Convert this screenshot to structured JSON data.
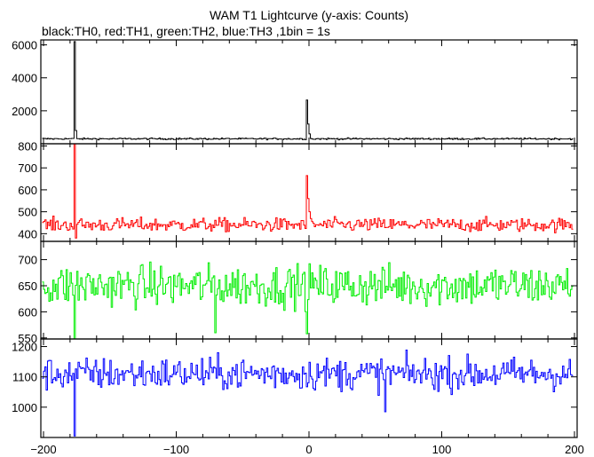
{
  "chart_data": {
    "type": "line",
    "title": "WAM T1 Lightcurve (y-axis: Counts)",
    "subtitle": "black:TH0, red:TH1, green:TH2, blue:TH3 ,1bin = 1s",
    "x_range": [
      -202,
      202
    ],
    "x_ticks": [
      -200,
      -100,
      0,
      100,
      200
    ],
    "x_tick_labels": [
      "−200",
      "−100",
      "0",
      "100",
      "200"
    ],
    "bin_seconds": 1,
    "panels": [
      {
        "series": "TH0",
        "color": "#000000",
        "ylim": [
          0,
          6300
        ],
        "y_ticks": [
          2000,
          4000,
          6000
        ],
        "y_tick_labels": [
          "2000",
          "4000",
          "6000"
        ],
        "baseline": 300,
        "noise": 35,
        "spikes": [
          {
            "x": -177,
            "value": 6200
          },
          {
            "x": -176,
            "value": 800
          },
          {
            "x": -2,
            "value": 2650
          },
          {
            "x": -1,
            "value": 1200
          },
          {
            "x": 0,
            "value": 600
          }
        ]
      },
      {
        "series": "TH1",
        "color": "#ff0000",
        "ylim": [
          365,
          810
        ],
        "y_ticks": [
          400,
          500,
          600,
          700,
          800
        ],
        "y_tick_labels": [
          "400",
          "500",
          "600",
          "700",
          "800"
        ],
        "baseline": 440,
        "noise": 22,
        "spikes": [
          {
            "x": -177,
            "value": 810
          },
          {
            "x": -176,
            "value": 380
          },
          {
            "x": -2,
            "value": 665
          },
          {
            "x": -1,
            "value": 560
          },
          {
            "x": 0,
            "value": 500
          }
        ]
      },
      {
        "series": "TH2",
        "color": "#00ee00",
        "ylim": [
          548,
          735
        ],
        "y_ticks": [
          550,
          600,
          650,
          700
        ],
        "y_tick_labels": [
          "550",
          "600",
          "650",
          "700"
        ],
        "baseline": 650,
        "noise": 28,
        "spikes": [
          {
            "x": -177,
            "value": 548
          },
          {
            "x": -71,
            "value": 560
          },
          {
            "x": -2,
            "value": 558
          }
        ]
      },
      {
        "series": "TH3",
        "color": "#0000ff",
        "ylim": [
          900,
          1225
        ],
        "y_ticks": [
          1000,
          1100,
          1200
        ],
        "y_tick_labels": [
          "1000",
          "1100",
          "1200"
        ],
        "baseline": 1110,
        "noise": 38,
        "spikes": [
          {
            "x": -177,
            "value": 905
          },
          {
            "x": 57,
            "value": 985
          }
        ]
      }
    ]
  }
}
